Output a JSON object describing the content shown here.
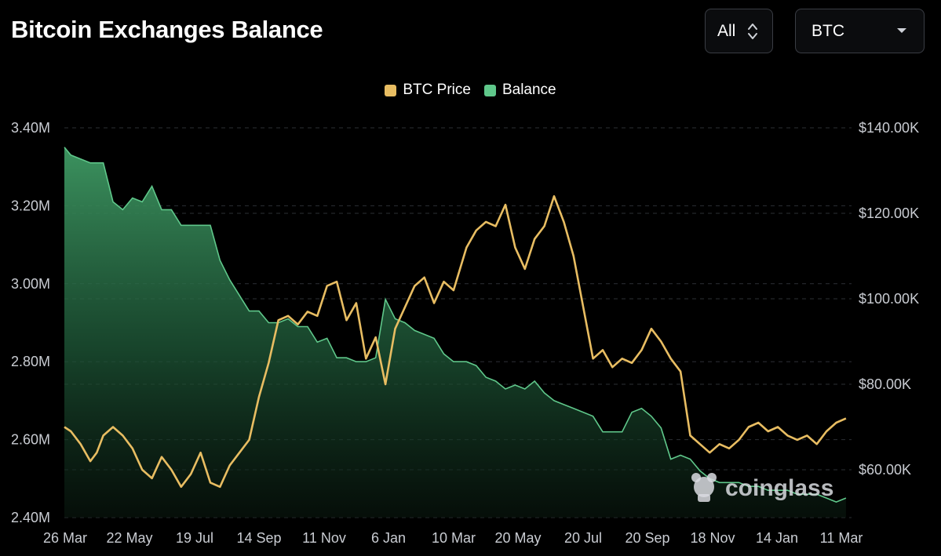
{
  "header": {
    "title": "Bitcoin Exchanges Balance",
    "range_selector": {
      "value": "All",
      "icon": "up-down-chevron-icon"
    },
    "asset_selector": {
      "value": "BTC",
      "icon": "caret-down-icon"
    }
  },
  "legend": [
    {
      "label": "BTC Price",
      "color": "#e8bd62"
    },
    {
      "label": "Balance",
      "color": "#5fc78a"
    }
  ],
  "watermark": {
    "text": "coinglass",
    "icon": "coinglass-logo-icon"
  },
  "chart_data": {
    "type": "line",
    "x_tick_labels": [
      "26 Mar",
      "22 May",
      "19 Jul",
      "14 Sep",
      "11 Nov",
      "6 Jan",
      "10 Mar",
      "20 May",
      "20 Jul",
      "20 Sep",
      "18 Nov",
      "14 Jan",
      "11 Mar"
    ],
    "y_left": {
      "ticks": [
        "3.40M",
        "3.20M",
        "3.00M",
        "2.80M",
        "2.60M",
        "2.40M"
      ],
      "range": [
        2.4,
        3.4
      ],
      "unit": "M"
    },
    "y_right": {
      "ticks": [
        "$140.00K",
        "$120.00K",
        "$100.00K",
        "$80.00K",
        "$60.00K"
      ],
      "range": [
        50,
        140
      ],
      "unit": "K USD"
    },
    "grid": true,
    "legend_position": "top-center",
    "series": [
      {
        "name": "Balance",
        "axis": "left",
        "style": "area",
        "color": "#5fc78a",
        "x": [
          0,
          0.2,
          0.5,
          0.8,
          1,
          1.2,
          1.5,
          1.8,
          2.1,
          2.4,
          2.7,
          3,
          3.3,
          3.6,
          3.9,
          4.2,
          4.5,
          4.8,
          5.1,
          5.4,
          5.7,
          6,
          6.3,
          6.6,
          6.9,
          7.2,
          7.5,
          7.8,
          8.1,
          8.4,
          8.7,
          9,
          9.3,
          9.6,
          9.9,
          10.2,
          10.5,
          10.8,
          11.1,
          11.4,
          11.7,
          12,
          12.4,
          12.7,
          13,
          13.3,
          13.6,
          13.9,
          14.2,
          14.5,
          14.8,
          15.1,
          15.4,
          15.7,
          16,
          16.3,
          16.6,
          16.9,
          17.2,
          17.5,
          17.8,
          18.1,
          18.4,
          18.7,
          19,
          19.3,
          19.6,
          19.9,
          20.2,
          20.5,
          20.8,
          21.1,
          21.4,
          21.7,
          22,
          22.3,
          22.6,
          22.9,
          23.2,
          23.5,
          23.8,
          24.1
        ],
        "values": [
          3.35,
          3.33,
          3.32,
          3.31,
          3.31,
          3.31,
          3.21,
          3.19,
          3.22,
          3.21,
          3.25,
          3.19,
          3.19,
          3.15,
          3.15,
          3.15,
          3.15,
          3.06,
          3.01,
          2.97,
          2.93,
          2.93,
          2.9,
          2.9,
          2.91,
          2.89,
          2.89,
          2.85,
          2.86,
          2.81,
          2.81,
          2.8,
          2.8,
          2.81,
          2.96,
          2.91,
          2.9,
          2.88,
          2.87,
          2.86,
          2.82,
          2.8,
          2.8,
          2.79,
          2.76,
          2.75,
          2.73,
          2.74,
          2.73,
          2.75,
          2.72,
          2.7,
          2.69,
          2.68,
          2.67,
          2.66,
          2.62,
          2.62,
          2.62,
          2.67,
          2.68,
          2.66,
          2.63,
          2.55,
          2.56,
          2.55,
          2.52,
          2.5,
          2.49,
          2.49,
          2.49,
          2.48,
          2.48,
          2.47,
          2.47,
          2.47,
          2.46,
          2.46,
          2.46,
          2.45,
          2.44,
          2.45
        ]
      },
      {
        "name": "BTC Price",
        "axis": "right",
        "style": "line",
        "color": "#e8bd62",
        "x": [
          0,
          0.2,
          0.5,
          0.8,
          1,
          1.2,
          1.5,
          1.8,
          2.1,
          2.4,
          2.7,
          3,
          3.3,
          3.6,
          3.9,
          4.2,
          4.5,
          4.8,
          5.1,
          5.4,
          5.7,
          6,
          6.3,
          6.6,
          6.9,
          7.2,
          7.5,
          7.8,
          8.1,
          8.4,
          8.7,
          9,
          9.3,
          9.6,
          9.9,
          10.2,
          10.5,
          10.8,
          11.1,
          11.4,
          11.7,
          12,
          12.4,
          12.7,
          13,
          13.3,
          13.6,
          13.9,
          14.2,
          14.5,
          14.8,
          15.1,
          15.4,
          15.7,
          16,
          16.3,
          16.6,
          16.9,
          17.2,
          17.5,
          17.8,
          18.1,
          18.4,
          18.7,
          19,
          19.3,
          19.6,
          19.9,
          20.2,
          20.5,
          20.8,
          21.1,
          21.4,
          21.7,
          22,
          22.3,
          22.6,
          22.9,
          23.2,
          23.5,
          23.8,
          24.1
        ],
        "values": [
          70,
          69,
          66,
          62,
          64,
          68,
          70,
          68,
          65,
          60,
          58,
          63,
          60,
          56,
          59,
          64,
          57,
          56,
          61,
          64,
          67,
          77,
          85,
          95,
          96,
          94,
          97,
          96,
          103,
          104,
          95,
          99,
          86,
          91,
          80,
          93,
          98,
          103,
          105,
          99,
          104,
          102,
          112,
          116,
          118,
          117,
          122,
          112,
          107,
          114,
          117,
          124,
          118,
          110,
          98,
          86,
          88,
          84,
          86,
          85,
          88,
          93,
          90,
          86,
          83,
          68,
          66,
          64,
          66,
          65,
          67,
          70,
          71,
          69,
          70,
          68,
          67,
          68,
          66,
          69,
          71,
          72
        ]
      }
    ]
  }
}
